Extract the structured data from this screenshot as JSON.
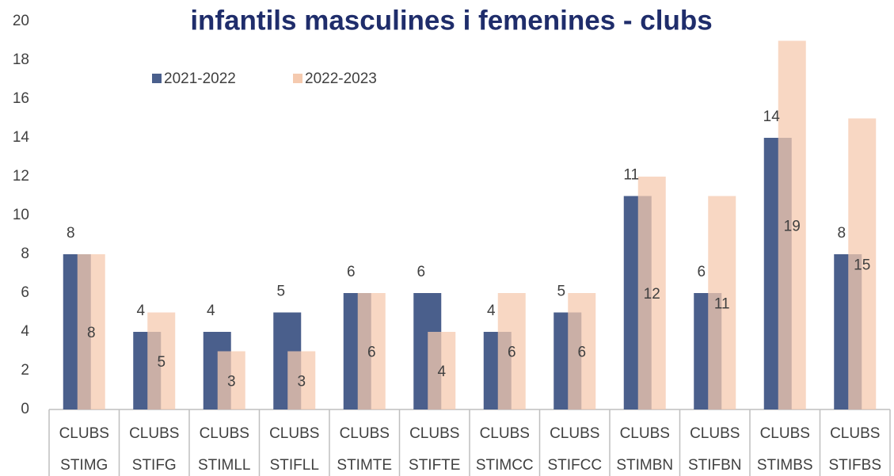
{
  "chart_data": {
    "type": "bar",
    "title": "infantils  masculines i femenines - clubs",
    "categories": [
      "CLUBS STIMG",
      "CLUBS STIFG",
      "CLUBS STIMLL",
      "CLUBS STIFLL",
      "CLUBS STIMTE",
      "CLUBS STIFTE",
      "CLUBS STIMCC",
      "CLUBS STIFCC",
      "CLUBS STIMBN",
      "CLUBS STIFBN",
      "CLUBS STIMBS",
      "CLUBS STIFBS"
    ],
    "series": [
      {
        "name": "2021-2022",
        "color": "#4a5f8c",
        "values": [
          8,
          4,
          4,
          5,
          6,
          6,
          4,
          5,
          11,
          6,
          14,
          8
        ]
      },
      {
        "name": "2022-2023",
        "color": "#f5caaf",
        "values": [
          8,
          5,
          3,
          3,
          6,
          4,
          6,
          6,
          12,
          11,
          19,
          15
        ]
      }
    ],
    "ylim": [
      0,
      20
    ],
    "yticks": [
      0,
      2,
      4,
      6,
      8,
      10,
      12,
      14,
      16,
      18,
      20
    ],
    "grid": false
  }
}
